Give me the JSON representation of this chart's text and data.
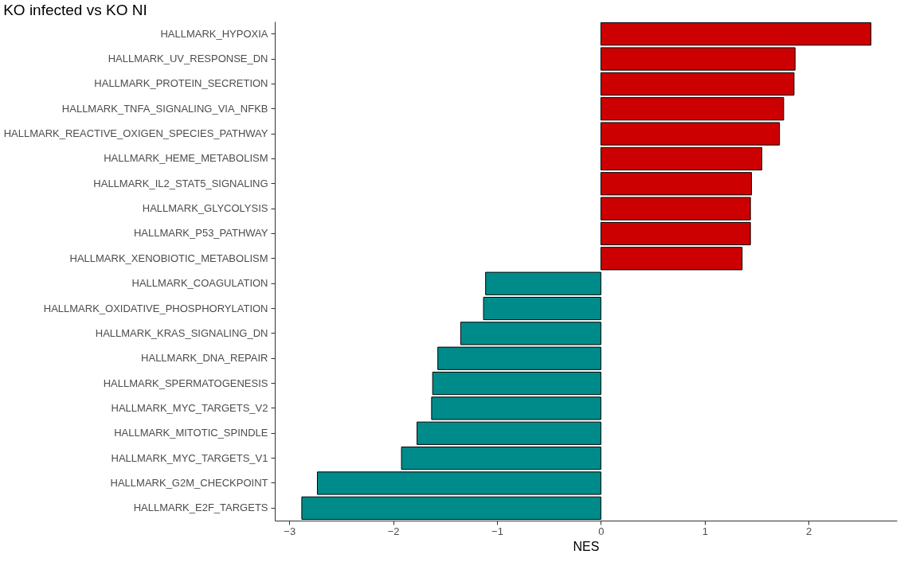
{
  "chart_data": {
    "type": "bar",
    "orientation": "horizontal",
    "title": "KO infected vs KO NI",
    "xlabel": "NES",
    "categories": [
      "HALLMARK_HYPOXIA",
      "HALLMARK_UV_RESPONSE_DN",
      "HALLMARK_PROTEIN_SECRETION",
      "HALLMARK_TNFA_SIGNALING_VIA_NFKB",
      "HALLMARK_REACTIVE_OXIGEN_SPECIES_PATHWAY",
      "HALLMARK_HEME_METABOLISM",
      "HALLMARK_IL2_STAT5_SIGNALING",
      "HALLMARK_GLYCOLYSIS",
      "HALLMARK_P53_PATHWAY",
      "HALLMARK_XENOBIOTIC_METABOLISM",
      "HALLMARK_COAGULATION",
      "HALLMARK_OXIDATIVE_PHOSPHORYLATION",
      "HALLMARK_KRAS_SIGNALING_DN",
      "HALLMARK_DNA_REPAIR",
      "HALLMARK_SPERMATOGENESIS",
      "HALLMARK_MYC_TARGETS_V2",
      "HALLMARK_MITOTIC_SPINDLE",
      "HALLMARK_MYC_TARGETS_V1",
      "HALLMARK_G2M_CHECKPOINT",
      "HALLMARK_E2F_TARGETS"
    ],
    "values": [
      2.6,
      1.87,
      1.86,
      1.76,
      1.72,
      1.55,
      1.45,
      1.44,
      1.44,
      1.36,
      -1.11,
      -1.13,
      -1.35,
      -1.57,
      -1.62,
      -1.63,
      -1.77,
      -1.92,
      -2.73,
      -2.88
    ],
    "colors": [
      "#cc0000",
      "#cc0000",
      "#cc0000",
      "#cc0000",
      "#cc0000",
      "#cc0000",
      "#cc0000",
      "#cc0000",
      "#cc0000",
      "#cc0000",
      "#008b8b",
      "#008b8b",
      "#008b8b",
      "#008b8b",
      "#008b8b",
      "#008b8b",
      "#008b8b",
      "#008b8b",
      "#008b8b",
      "#008b8b"
    ],
    "xlim": [
      -3.14,
      2.85
    ],
    "xticks": [
      -3,
      -2,
      -1,
      0,
      1,
      2
    ],
    "grid": false
  }
}
